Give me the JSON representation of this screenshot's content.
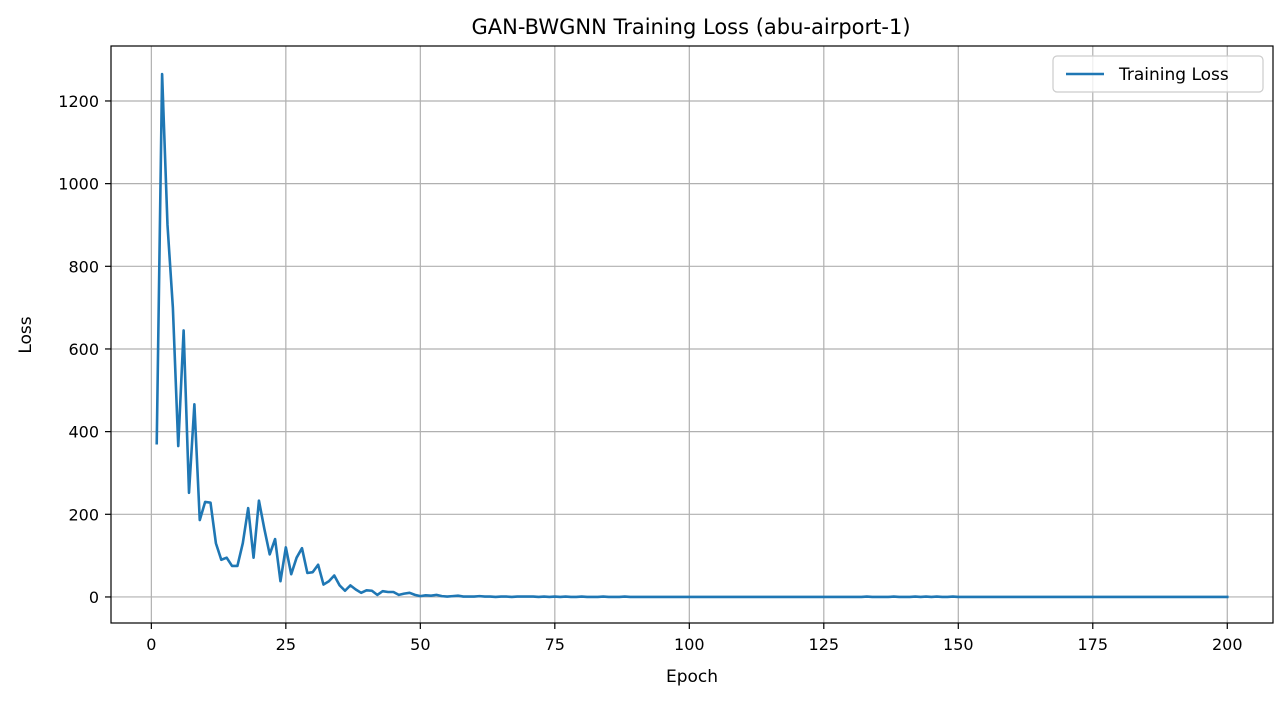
{
  "chart_data": {
    "type": "line",
    "title": "GAN-BWGNN Training Loss (abu-airport-1)",
    "xlabel": "Epoch",
    "ylabel": "Loss",
    "xlim": [
      -7.5,
      208.5
    ],
    "ylim": [
      -63,
      1333
    ],
    "xticks": [
      0,
      25,
      50,
      75,
      100,
      125,
      150,
      175,
      200
    ],
    "yticks": [
      0,
      200,
      400,
      600,
      800,
      1000,
      1200
    ],
    "grid": true,
    "legend": {
      "position": "top-right",
      "entries": [
        "Training Loss"
      ]
    },
    "series": [
      {
        "name": "Training Loss",
        "color": "#1f77b4",
        "x": [
          1,
          2,
          3,
          4,
          5,
          6,
          7,
          8,
          9,
          10,
          11,
          12,
          13,
          14,
          15,
          16,
          17,
          18,
          19,
          20,
          21,
          22,
          23,
          24,
          25,
          26,
          27,
          28,
          29,
          30,
          31,
          32,
          33,
          34,
          35,
          36,
          37,
          38,
          39,
          40,
          41,
          42,
          43,
          44,
          45,
          46,
          47,
          48,
          49,
          50,
          51,
          52,
          53,
          54,
          55,
          56,
          57,
          58,
          59,
          60,
          61,
          62,
          63,
          64,
          65,
          66,
          67,
          68,
          69,
          70,
          71,
          72,
          73,
          74,
          75,
          76,
          77,
          78,
          79,
          80,
          81,
          82,
          83,
          84,
          85,
          86,
          87,
          88,
          89,
          90,
          91,
          92,
          93,
          94,
          95,
          96,
          97,
          98,
          99,
          100,
          101,
          102,
          103,
          104,
          105,
          106,
          107,
          108,
          109,
          110,
          111,
          112,
          113,
          114,
          115,
          116,
          117,
          118,
          119,
          120,
          121,
          122,
          123,
          124,
          125,
          126,
          127,
          128,
          129,
          130,
          131,
          132,
          133,
          134,
          135,
          136,
          137,
          138,
          139,
          140,
          141,
          142,
          143,
          144,
          145,
          146,
          147,
          148,
          149,
          150,
          151,
          152,
          153,
          154,
          155,
          156,
          157,
          158,
          159,
          160,
          161,
          162,
          163,
          164,
          165,
          166,
          167,
          168,
          169,
          170,
          171,
          172,
          173,
          174,
          175,
          176,
          177,
          178,
          179,
          180,
          181,
          182,
          183,
          184,
          185,
          186,
          187,
          188,
          189,
          190,
          191,
          192,
          193,
          194,
          195,
          196,
          197,
          198,
          199,
          200
        ],
        "values": [
          372,
          1265,
          900,
          700,
          365,
          645,
          252,
          466,
          186,
          230,
          228,
          130,
          90,
          95,
          75,
          75,
          130,
          215,
          95,
          233,
          165,
          103,
          140,
          38,
          120,
          55,
          95,
          118,
          58,
          60,
          78,
          30,
          38,
          52,
          28,
          15,
          28,
          18,
          10,
          16,
          15,
          5,
          14,
          12,
          12,
          5,
          8,
          10,
          5,
          2,
          4,
          3,
          5,
          2,
          1,
          2,
          3,
          1,
          1,
          1,
          2,
          1,
          1,
          0,
          1,
          1,
          0,
          1,
          1,
          1,
          1,
          0,
          1,
          0,
          1,
          0,
          1,
          0,
          0,
          1,
          0,
          0,
          0,
          1,
          0,
          0,
          0,
          1,
          0,
          0,
          0,
          0,
          0,
          0,
          0,
          0,
          0,
          0,
          0,
          0,
          0,
          0,
          0,
          0,
          0,
          0,
          0,
          0,
          0,
          0,
          0,
          0,
          0,
          0,
          0,
          0,
          0,
          0,
          0,
          0,
          0,
          0,
          0,
          0,
          0,
          0,
          0,
          0,
          0,
          0,
          0,
          0,
          1,
          0,
          0,
          0,
          0,
          1,
          0,
          0,
          0,
          1,
          0,
          1,
          0,
          1,
          0,
          0,
          1,
          0,
          0,
          0,
          0,
          0,
          0,
          0,
          0,
          0,
          0,
          0,
          0,
          0,
          0,
          0,
          0,
          0,
          0,
          0,
          0,
          0,
          0,
          0,
          0,
          0,
          0,
          0,
          0,
          0,
          0,
          0,
          0,
          0,
          0,
          0,
          0,
          0,
          0,
          0,
          0,
          0,
          0,
          0,
          0,
          0,
          0,
          0,
          0,
          0,
          0,
          0
        ]
      }
    ]
  }
}
